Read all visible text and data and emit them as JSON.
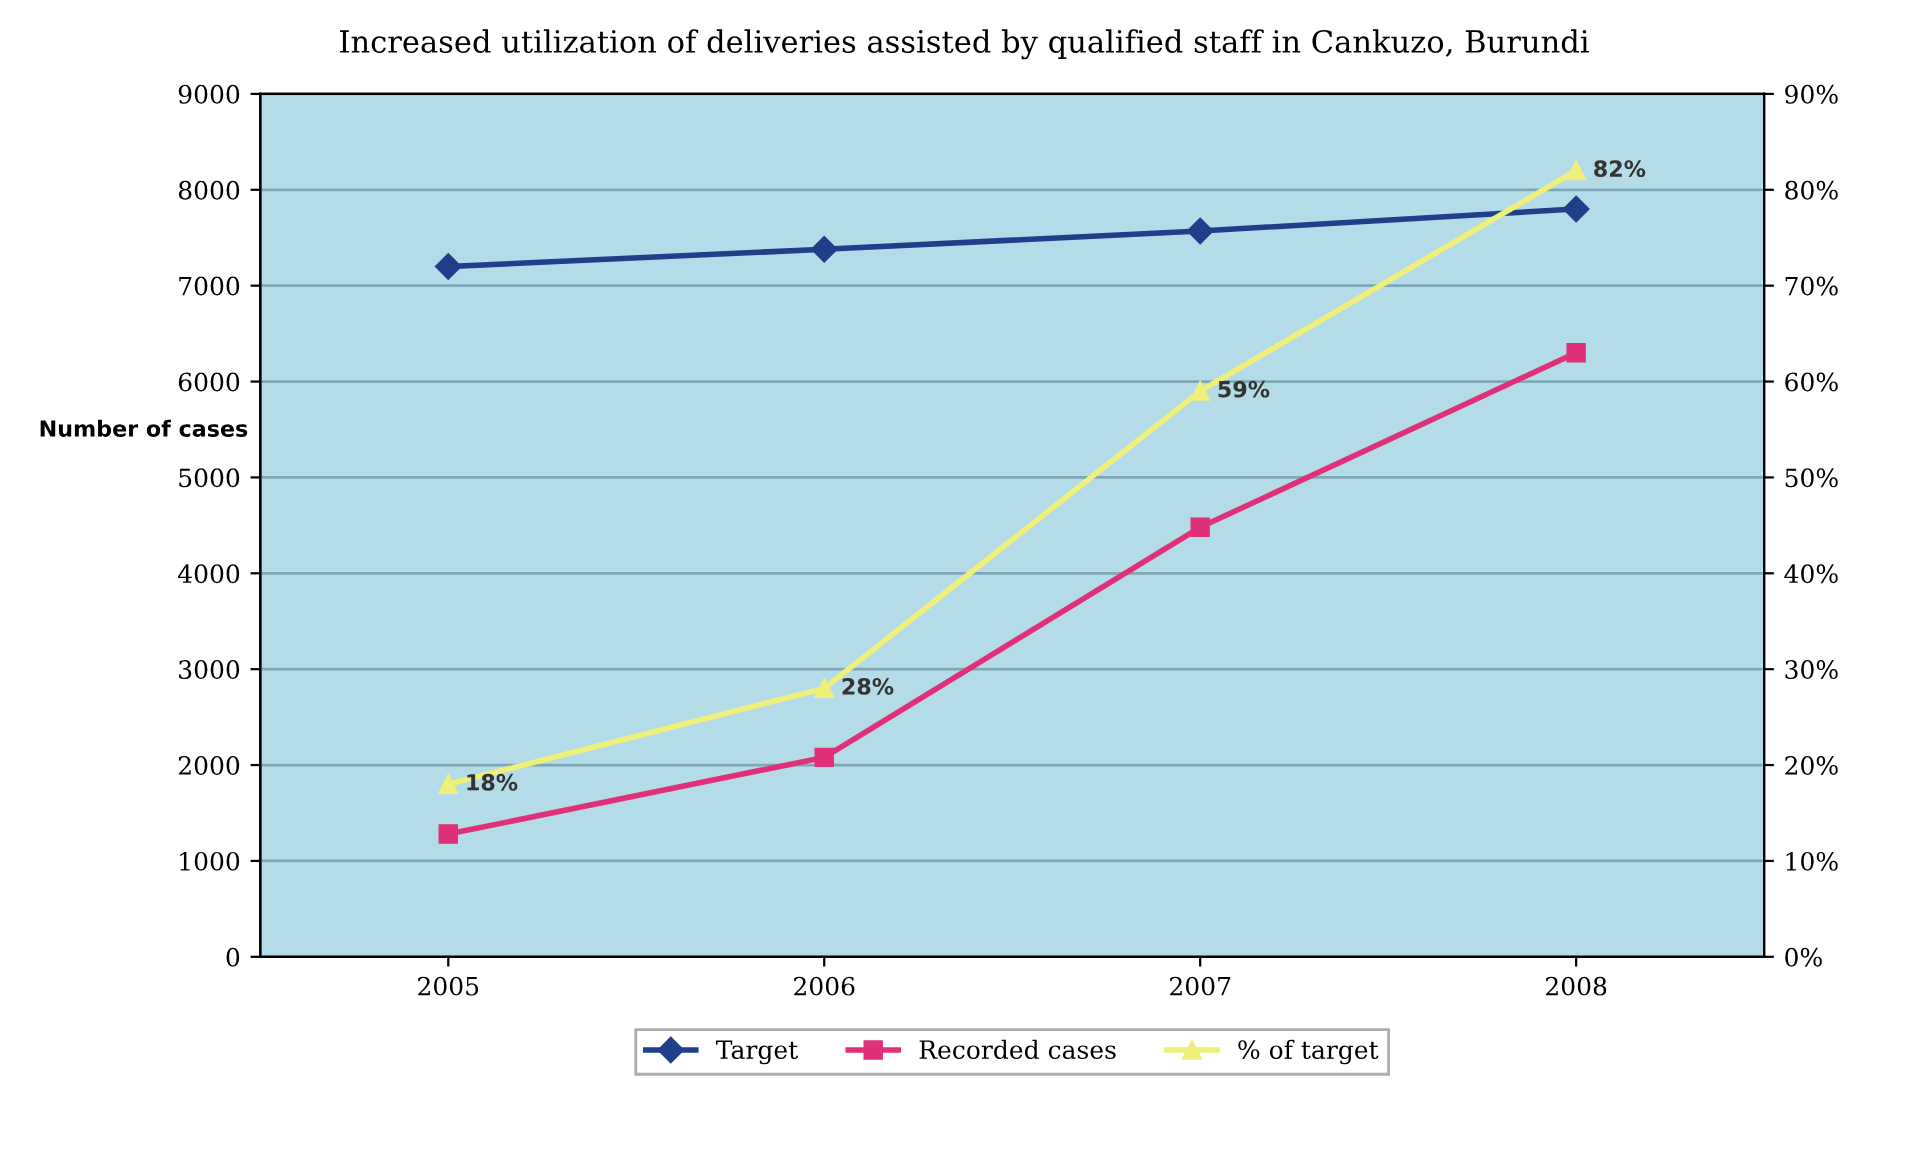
{
  "chart_data": {
    "type": "line",
    "title": "Increased utilization of deliveries assisted by qualified staff in Cankuzo, Burundi",
    "ylabel": "Number of cases",
    "categories": [
      "2005",
      "2006",
      "2007",
      "2008"
    ],
    "series": [
      {
        "name": "Target",
        "color": "#1f3f8a",
        "values": [
          7200,
          7380,
          7570,
          7800
        ],
        "marker": "diamond"
      },
      {
        "name": "Recorded cases",
        "color": "#e0307a",
        "values": [
          1280,
          2080,
          4480,
          6300
        ],
        "marker": "square"
      },
      {
        "name": "% of target",
        "color": "#eef07a",
        "values": [
          18,
          28,
          59,
          82
        ],
        "axis": "y2",
        "marker": "triangle",
        "value_labels": [
          "18%",
          "28%",
          "59%",
          "82%"
        ]
      }
    ],
    "ylim": [
      0,
      9000
    ],
    "yticks": [
      0,
      1000,
      2000,
      3000,
      4000,
      5000,
      6000,
      7000,
      8000,
      9000
    ],
    "y2lim": [
      0,
      90
    ],
    "y2ticks": [
      {
        "value": 0,
        "label": "0%"
      },
      {
        "value": 10,
        "label": "10%"
      },
      {
        "value": 20,
        "label": "20%"
      },
      {
        "value": 30,
        "label": "30%"
      },
      {
        "value": 40,
        "label": "40%"
      },
      {
        "value": 50,
        "label": "50%"
      },
      {
        "value": 60,
        "label": "60%"
      },
      {
        "value": 70,
        "label": "70%"
      },
      {
        "value": 80,
        "label": "80%"
      },
      {
        "value": 90,
        "label": "90%"
      }
    ],
    "grid": "y",
    "legend": "bottom",
    "line_style": "solid"
  }
}
